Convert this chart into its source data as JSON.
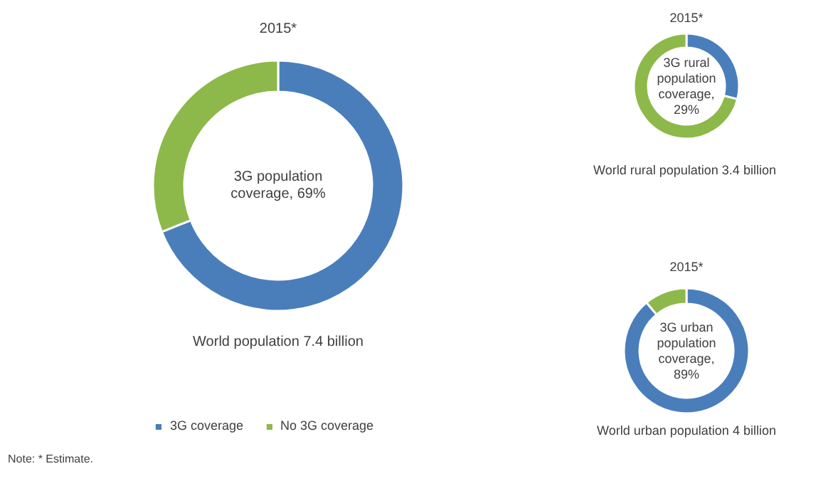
{
  "chart_data": [
    {
      "type": "donut",
      "title": "2015*",
      "categories": [
        "3G coverage",
        "No 3G coverage"
      ],
      "values": [
        69,
        31
      ],
      "colors": [
        "#4a7ebb",
        "#8db84a"
      ],
      "legend": "bottom",
      "annotations": [
        "3G population coverage, 69%",
        "World population 7.4 billion",
        "Note: * Estimate."
      ]
    },
    {
      "type": "donut",
      "title": "2015*",
      "categories": [
        null,
        null
      ],
      "values": [
        29,
        71
      ],
      "colors": [
        "#4a7ebb",
        "#8db84a"
      ],
      "annotations": [
        "3G rural population coverage, 29%",
        "World  rural population 3.4 billion"
      ]
    },
    {
      "type": "donut",
      "title": "2015*",
      "categories": [
        null,
        null
      ],
      "values": [
        89,
        11
      ],
      "colors": [
        "#4a7ebb",
        "#8db84a"
      ],
      "annotations": [
        "3G urban population coverage, 89%",
        "World urban population 4 billion"
      ]
    }
  ]
}
